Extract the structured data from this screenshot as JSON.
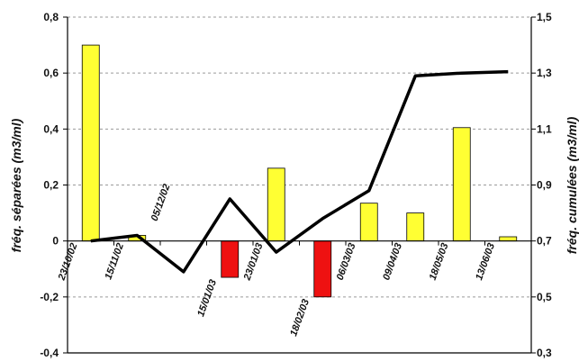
{
  "chart_data": {
    "type": "bar",
    "categories": [
      "23/10/02",
      "15/11/02",
      "05/12/02",
      "15/01/03",
      "23/01/03",
      "18/02/03",
      "06/03/03",
      "09/04/03",
      "18/05/03",
      "13/06/03"
    ],
    "series": [
      {
        "type": "bar",
        "axis": "left",
        "values": [
          0.7,
          0.02,
          0,
          -0.13,
          0.26,
          -0.2,
          0.135,
          0.1,
          0.405,
          0.015
        ]
      },
      {
        "type": "line",
        "axis": "right",
        "values": [
          0.7,
          0.72,
          0.59,
          0.85,
          0.66,
          0.78,
          0.88,
          1.29,
          1.3,
          1.305
        ]
      }
    ],
    "ylabel": "fréq. séparées (m3/ml)",
    "y2label": "fréq. cumulées (m3/ml)",
    "ylim": [
      -0.4,
      0.8
    ],
    "y2lim": [
      0.3,
      1.5
    ],
    "yticks": [
      "-0,4",
      "-0,2",
      "0",
      "0,2",
      "0,4",
      "0,6",
      "0,8"
    ],
    "y2ticks": [
      "0,3",
      "0,5",
      "0,7",
      "0,9",
      "1,1",
      "1,3",
      "1,5"
    ],
    "grid": true,
    "colors": {
      "positive": "#ffff33",
      "negative": "#ee1111",
      "line": "#000000",
      "grid": "#9a9a9a"
    }
  }
}
